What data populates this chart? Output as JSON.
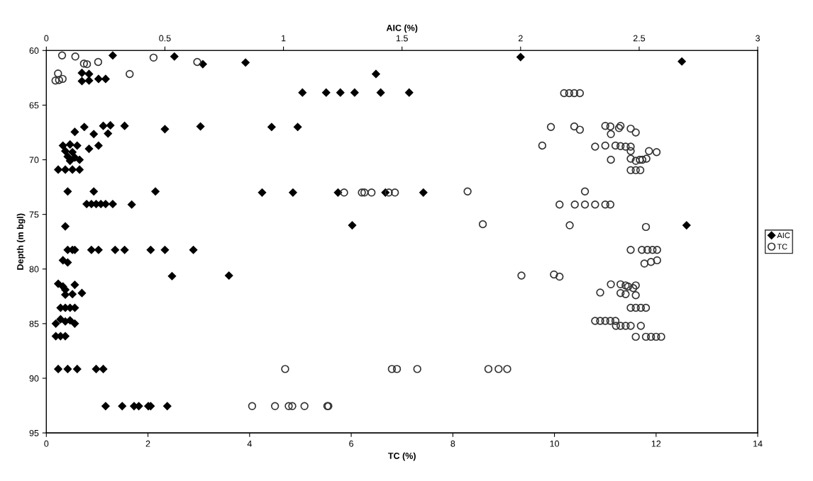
{
  "chart_data": {
    "type": "scatter",
    "xlabel": "TC (%)",
    "x2label": "AIC (%)",
    "ylabel": "Depth (m bgl)",
    "xlim": [
      0,
      14
    ],
    "xticks": [
      0,
      2,
      4,
      6,
      8,
      10,
      12,
      14
    ],
    "x2lim": [
      0,
      3
    ],
    "x2ticks": [
      0,
      0.5,
      1,
      1.5,
      2,
      2.5,
      3
    ],
    "ylim": [
      95,
      60
    ],
    "yticks": [
      60,
      65,
      70,
      75,
      80,
      85,
      90,
      95
    ],
    "grid": false,
    "legend": "right",
    "series": [
      {
        "name": "AIC",
        "axis": "x2",
        "marker": "diamond",
        "color": "#000000",
        "x": [
          0.28,
          0.54,
          0.66,
          0.84,
          2.0,
          2.68,
          0.15,
          0.18,
          0.15,
          0.18,
          0.22,
          0.25,
          1.39,
          1.08,
          1.18,
          1.24,
          1.3,
          1.41,
          1.53,
          0.16,
          0.24,
          0.27,
          0.33,
          0.5,
          0.65,
          0.95,
          1.06,
          0.12,
          0.2,
          0.26,
          0.18,
          0.22,
          0.07,
          0.1,
          0.13,
          0.08,
          0.11,
          0.09,
          0.12,
          0.14,
          0.1,
          0.05,
          0.08,
          0.11,
          0.14,
          0.09,
          0.2,
          0.46,
          0.91,
          1.04,
          1.23,
          1.43,
          1.59,
          0.17,
          0.19,
          0.21,
          0.23,
          0.25,
          0.28,
          0.36,
          0.08,
          1.29,
          2.7,
          0.09,
          0.11,
          0.12,
          0.19,
          0.22,
          0.29,
          0.33,
          0.44,
          0.5,
          0.62,
          0.07,
          0.09,
          0.53,
          0.77,
          0.05,
          0.07,
          0.08,
          0.12,
          0.08,
          0.11,
          0.15,
          0.06,
          0.08,
          0.1,
          0.12,
          0.04,
          0.06,
          0.08,
          0.1,
          0.12,
          0.04,
          0.06,
          0.08,
          0.05,
          0.09,
          0.13,
          0.21,
          0.24,
          0.25,
          0.32,
          0.37,
          0.39,
          0.43,
          0.44,
          0.51
        ],
        "values": [
          60.45,
          60.55,
          61.25,
          61.1,
          60.6,
          61.0,
          62.05,
          62.15,
          62.8,
          62.75,
          62.6,
          62.6,
          62.15,
          63.85,
          63.85,
          63.85,
          63.85,
          63.85,
          63.85,
          67.0,
          66.9,
          66.85,
          66.9,
          67.2,
          66.95,
          67.0,
          67.0,
          67.45,
          67.65,
          67.6,
          69.0,
          68.7,
          68.7,
          68.6,
          68.7,
          69.2,
          69.3,
          69.7,
          69.8,
          70.0,
          70.1,
          70.9,
          70.9,
          70.9,
          70.9,
          72.9,
          72.9,
          72.9,
          73.0,
          73.0,
          73.0,
          73.0,
          73.0,
          74.05,
          74.05,
          74.05,
          74.05,
          74.05,
          74.05,
          74.1,
          76.1,
          76.0,
          76.0,
          78.25,
          78.25,
          78.25,
          78.25,
          78.25,
          78.25,
          78.25,
          78.25,
          78.25,
          78.25,
          79.2,
          79.4,
          80.65,
          80.6,
          81.35,
          81.6,
          81.9,
          81.45,
          82.35,
          82.3,
          82.2,
          83.55,
          83.55,
          83.55,
          83.55,
          85.0,
          84.6,
          84.8,
          84.7,
          85.0,
          86.15,
          86.15,
          86.15,
          89.15,
          89.15,
          89.15,
          89.15,
          89.15,
          92.55,
          92.55,
          92.55,
          92.55,
          92.55,
          92.55,
          92.55
        ]
      },
      {
        "name": "TC",
        "marker": "circle",
        "color": "#333333",
        "x": [
          0.31,
          0.57,
          0.74,
          0.8,
          1.02,
          2.11,
          2.97,
          1.64,
          0.23,
          0.18,
          0.25,
          0.32,
          10.19,
          10.29,
          10.39,
          10.5,
          9.93,
          10.39,
          10.5,
          11.0,
          11.1,
          11.3,
          11.27,
          11.5,
          11.6,
          11.11,
          9.76,
          10.8,
          11.0,
          11.2,
          11.3,
          11.4,
          11.5,
          11.5,
          11.86,
          12.01,
          11.11,
          11.5,
          11.6,
          11.68,
          11.73,
          11.81,
          11.5,
          11.6,
          11.69,
          5.86,
          6.21,
          6.26,
          6.4,
          6.74,
          6.86,
          8.29,
          10.6,
          10.1,
          10.4,
          10.6,
          10.8,
          11.0,
          11.1,
          8.59,
          10.3,
          11.8,
          11.5,
          11.72,
          11.83,
          11.93,
          12.02,
          11.77,
          11.9,
          12.02,
          9.35,
          9.99,
          10.1,
          11.11,
          11.3,
          11.4,
          11.45,
          11.55,
          11.6,
          10.9,
          11.3,
          11.4,
          11.6,
          11.5,
          11.6,
          11.7,
          11.8,
          10.8,
          10.9,
          11.0,
          11.1,
          11.2,
          11.21,
          11.3,
          11.4,
          11.5,
          11.7,
          11.6,
          11.8,
          11.9,
          12.0,
          12.1,
          4.7,
          6.8,
          6.9,
          7.3,
          8.7,
          8.9,
          9.07,
          4.05,
          4.5,
          4.77,
          4.84,
          5.08,
          5.53,
          5.55
        ],
        "values": [
          60.45,
          60.55,
          61.2,
          61.25,
          61.05,
          60.65,
          61.05,
          62.15,
          62.1,
          62.75,
          62.7,
          62.6,
          63.9,
          63.9,
          63.9,
          63.9,
          67.0,
          66.95,
          67.25,
          66.9,
          66.95,
          66.9,
          67.1,
          67.15,
          67.5,
          67.65,
          68.7,
          68.8,
          68.7,
          68.7,
          68.75,
          68.8,
          68.8,
          69.2,
          69.2,
          69.3,
          70.0,
          69.9,
          70.1,
          70.0,
          70.0,
          69.9,
          70.95,
          70.95,
          70.95,
          73.0,
          73.0,
          73.0,
          73.0,
          73.0,
          73.0,
          72.9,
          72.9,
          74.1,
          74.1,
          74.1,
          74.1,
          74.1,
          74.1,
          75.9,
          76.0,
          76.15,
          78.25,
          78.25,
          78.25,
          78.25,
          78.25,
          79.5,
          79.35,
          79.2,
          80.6,
          80.5,
          80.7,
          81.4,
          81.4,
          81.5,
          81.6,
          81.75,
          81.5,
          82.15,
          82.2,
          82.3,
          82.4,
          83.55,
          83.55,
          83.55,
          83.55,
          84.75,
          84.75,
          84.75,
          84.75,
          84.75,
          85.2,
          85.2,
          85.2,
          85.2,
          85.2,
          86.2,
          86.2,
          86.2,
          86.2,
          86.2,
          89.15,
          89.15,
          89.15,
          89.15,
          89.15,
          89.15,
          89.15,
          92.55,
          92.55,
          92.55,
          92.55,
          92.55,
          92.55,
          92.55
        ]
      }
    ]
  }
}
